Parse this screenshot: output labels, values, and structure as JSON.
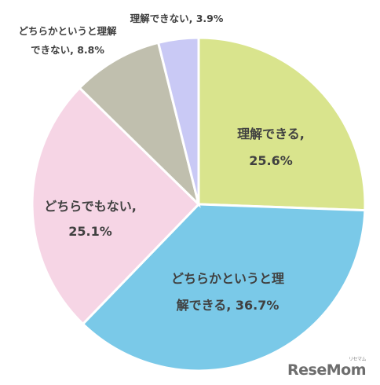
{
  "chart_data": {
    "type": "pie",
    "slices": [
      {
        "label_lines": [
          "理解できる,",
          "25.6%"
        ],
        "value": 25.6,
        "color": "#d9e48d"
      },
      {
        "label_lines": [
          "どちらかというと理",
          "解できる, 36.7%"
        ],
        "value": 36.7,
        "color": "#7ac9e8"
      },
      {
        "label_lines": [
          "どちらでもない,",
          "25.1%"
        ],
        "value": 25.1,
        "color": "#f6d5e5"
      },
      {
        "label_lines": [
          "どちらかというと理解",
          "できない, 8.8%"
        ],
        "value": 8.8,
        "color": "#c0bfae"
      },
      {
        "label_lines": [
          "理解できない, 3.9%"
        ],
        "value": 3.9,
        "color": "#c9c9f5"
      }
    ]
  },
  "watermark": {
    "text": "ReseMom",
    "small": "リセマム"
  }
}
